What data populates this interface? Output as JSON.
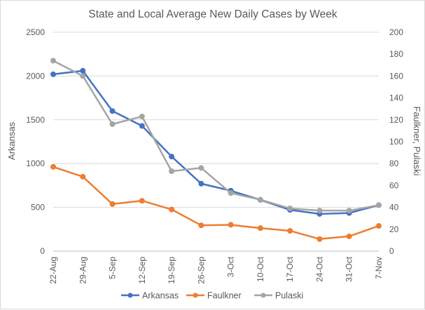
{
  "chart_data": {
    "type": "line",
    "title": "State and Local Average New Daily Cases by Week",
    "xlabel": "",
    "ylabel": "Arkansas",
    "y2label": "Faulkner, Pulaski",
    "categories": [
      "22-Aug",
      "29-Aug",
      "5-Sep",
      "12-Sep",
      "19-Sep",
      "26-Sep",
      "3-Oct",
      "10-Oct",
      "17-Oct",
      "24-Oct",
      "31-Oct",
      "7-Nov"
    ],
    "ylim": [
      0,
      2500
    ],
    "yticks": [
      0,
      500,
      1000,
      1500,
      2000,
      2500
    ],
    "y2lim": [
      0,
      200
    ],
    "y2ticks": [
      0,
      20,
      40,
      60,
      80,
      100,
      120,
      140,
      160,
      180,
      200
    ],
    "grid": true,
    "legend": "bottom",
    "series": [
      {
        "name": "Arkansas",
        "axis": "left",
        "color": "#4472C4",
        "values": [
          2020,
          2060,
          1600,
          1430,
          1080,
          770,
          690,
          585,
          470,
          425,
          435,
          525
        ]
      },
      {
        "name": "Faulkner",
        "axis": "right",
        "color": "#ED7D31",
        "values": [
          77,
          68,
          43,
          46,
          38,
          23.5,
          24,
          21,
          18.5,
          11,
          13.5,
          23
        ]
      },
      {
        "name": "Pulaski",
        "axis": "right",
        "color": "#A5A5A5",
        "values": [
          174,
          160,
          116,
          123,
          73,
          76,
          53,
          47,
          39,
          37,
          37,
          42
        ]
      }
    ]
  }
}
